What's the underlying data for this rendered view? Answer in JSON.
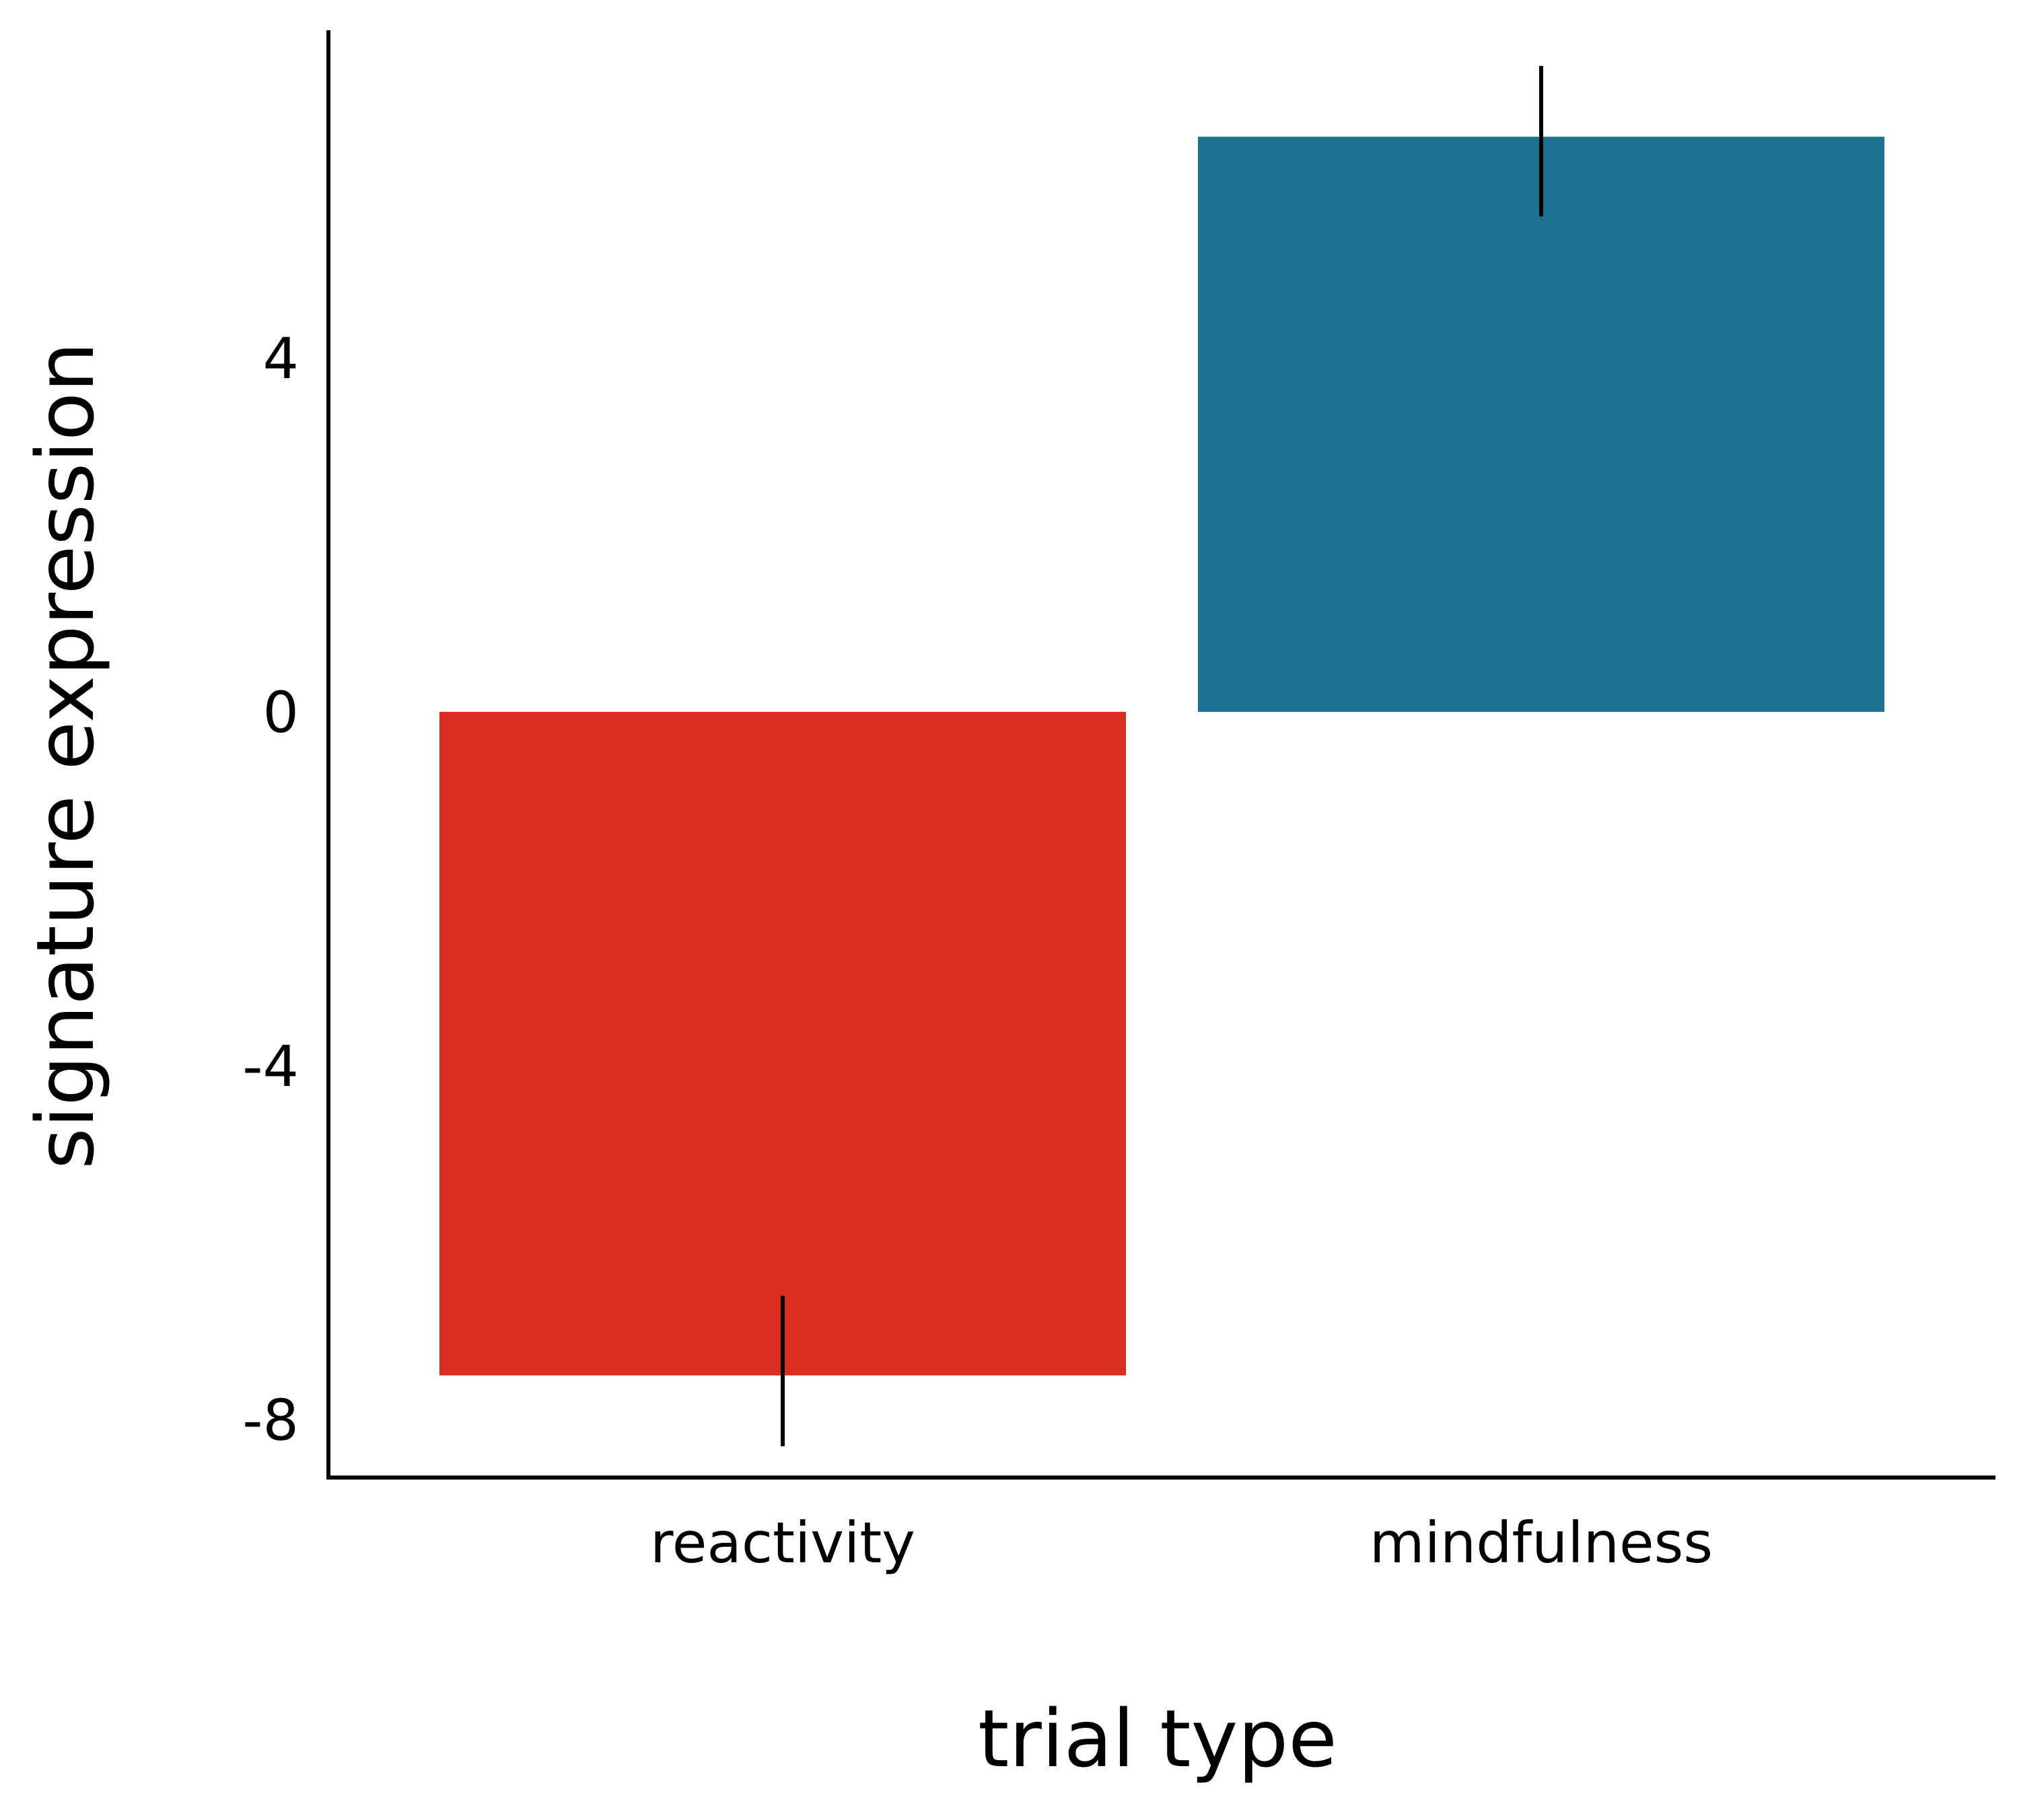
{
  "chart_data": {
    "type": "bar",
    "categories": [
      "reactivity",
      "mindfulness"
    ],
    "values": [
      -7.5,
      6.5
    ],
    "error_bars": [
      {
        "low": -8.3,
        "high": -6.6
      },
      {
        "low": 5.6,
        "high": 7.3
      }
    ],
    "colors": [
      "#dc2f20",
      "#1c7290"
    ],
    "xlabel": "trial type",
    "ylabel": "signature expression",
    "ylim": [
      -9,
      8
    ],
    "yticks": [
      4,
      0,
      -4,
      -8
    ],
    "ytick_labels": [
      "4",
      "0",
      "-4",
      "-8"
    ],
    "grid": false,
    "legend": false
  }
}
